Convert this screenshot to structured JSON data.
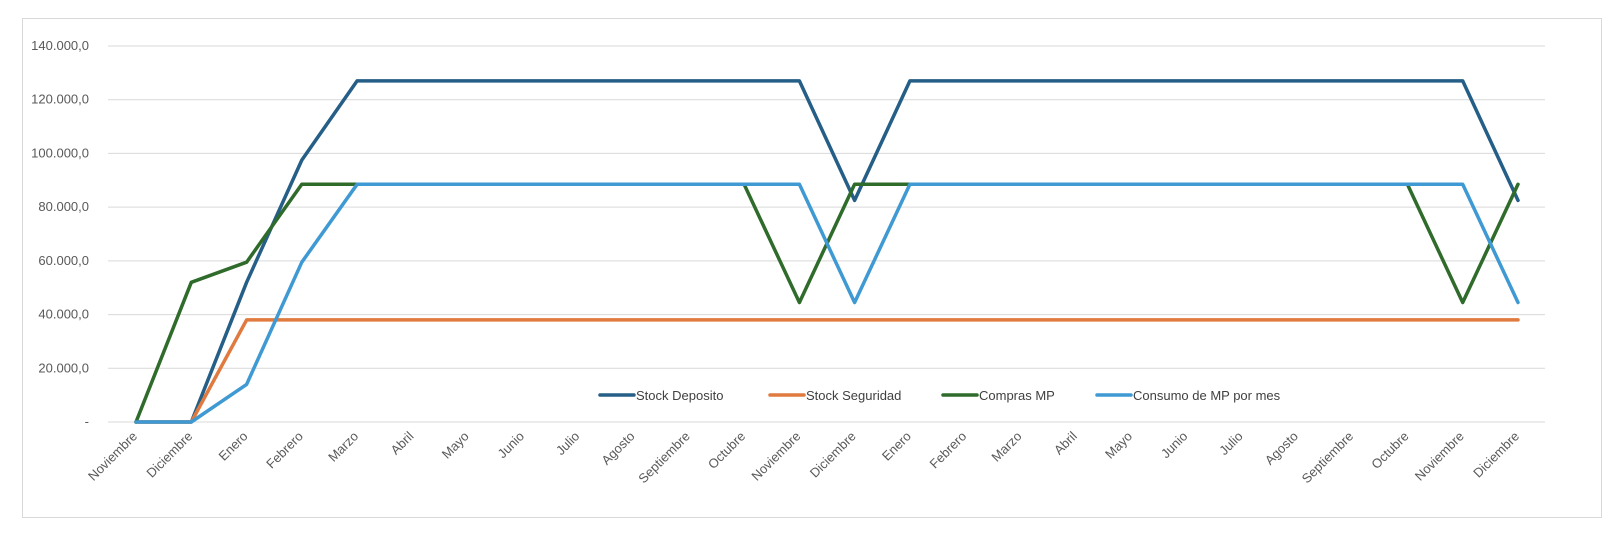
{
  "chart_data": {
    "type": "line",
    "title": "",
    "xlabel": "",
    "ylabel": "",
    "ylim": [
      0,
      140000
    ],
    "yticks": [
      0,
      20000,
      40000,
      60000,
      80000,
      100000,
      120000,
      140000
    ],
    "ytick_labels": [
      "-",
      "20.000,0",
      "40.000,0",
      "60.000,0",
      "80.000,0",
      "100.000,0",
      "120.000,0",
      "140.000,0"
    ],
    "grid": true,
    "legend_position": "bottom-center (inside plot)",
    "categories": [
      "Noviembre",
      "Diciembre",
      "Enero",
      "Febrero",
      "Marzo",
      "Abril",
      "Mayo",
      "Junio",
      "Julio",
      "Agosto",
      "Septiembre",
      "Octubre",
      "Noviembre",
      "Diciembre",
      "Enero",
      "Febrero",
      "Marzo",
      "Abril",
      "Mayo",
      "Junio",
      "Julio",
      "Agosto",
      "Septiembre",
      "Octubre",
      "Noviembre",
      "Diciembre"
    ],
    "series": [
      {
        "name": "Stock  Deposito",
        "color": "#255e86",
        "values": [
          0,
          0,
          52000,
          97500,
          127000,
          127000,
          127000,
          127000,
          127000,
          127000,
          127000,
          127000,
          127000,
          82500,
          127000,
          127000,
          127000,
          127000,
          127000,
          127000,
          127000,
          127000,
          127000,
          127000,
          127000,
          82500
        ]
      },
      {
        "name": "Stock Seguridad",
        "color": "#e07a3f",
        "values": [
          0,
          0,
          38000,
          38000,
          38000,
          38000,
          38000,
          38000,
          38000,
          38000,
          38000,
          38000,
          38000,
          38000,
          38000,
          38000,
          38000,
          38000,
          38000,
          38000,
          38000,
          38000,
          38000,
          38000,
          38000,
          38000
        ]
      },
      {
        "name": "Compras MP",
        "color": "#2f6b2a",
        "values": [
          0,
          52000,
          59500,
          88500,
          88500,
          88500,
          88500,
          88500,
          88500,
          88500,
          88500,
          88500,
          44500,
          88500,
          88500,
          88500,
          88500,
          88500,
          88500,
          88500,
          88500,
          88500,
          88500,
          88500,
          44500,
          88500
        ]
      },
      {
        "name": "Consumo de MP por mes",
        "color": "#3f9ad3",
        "values": [
          0,
          0,
          14000,
          59500,
          88500,
          88500,
          88500,
          88500,
          88500,
          88500,
          88500,
          88500,
          88500,
          44500,
          88500,
          88500,
          88500,
          88500,
          88500,
          88500,
          88500,
          88500,
          88500,
          88500,
          88500,
          44500
        ]
      }
    ]
  }
}
